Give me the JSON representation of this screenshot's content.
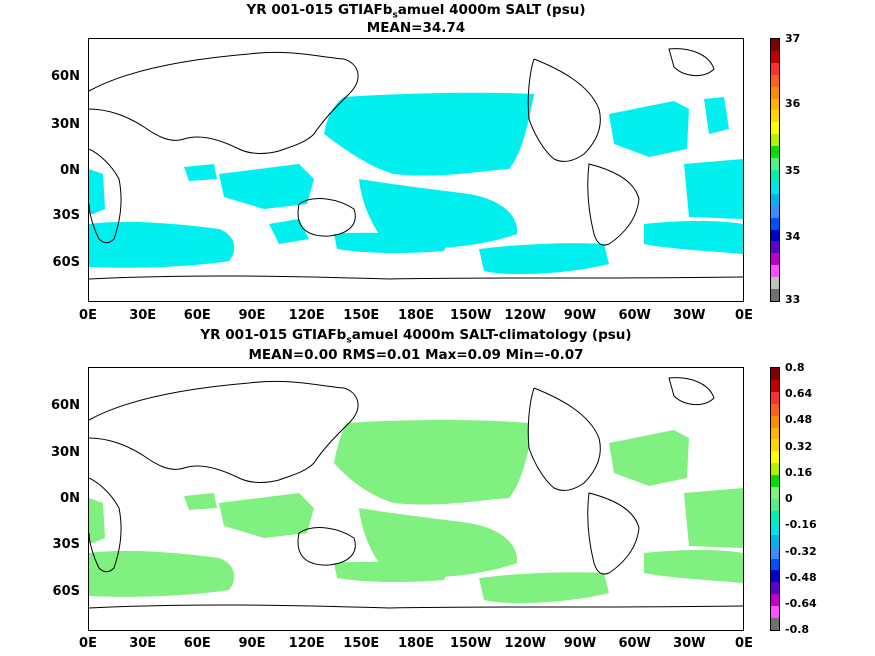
{
  "map1": {
    "title_pre": "YR 001-015 GTIAFb",
    "title_sub": "s",
    "title_post": "amuel 4000m SALT (psu)",
    "subtitle": "MEAN=34.74",
    "lat_labels": [
      "60N",
      "30N",
      "0N",
      "30S",
      "60S"
    ],
    "lon_labels": [
      "0E",
      "30E",
      "60E",
      "90E",
      "120E",
      "150E",
      "180E",
      "150W",
      "120W",
      "90W",
      "60W",
      "30W",
      "0E"
    ],
    "colorbar_labels": [
      "37",
      "36",
      "35",
      "34",
      "33"
    ],
    "colorbar_colors": [
      "#800000",
      "#c00000",
      "#ff3030",
      "#ff6020",
      "#ff8c00",
      "#ffb400",
      "#ffd700",
      "#ffff00",
      "#b4f000",
      "#00e000",
      "#50f08c",
      "#00f0b4",
      "#00e6e6",
      "#00b4f0",
      "#3c8cff",
      "#0050ff",
      "#0000c8",
      "#5a00c8",
      "#c000c8",
      "#ff50ff",
      "#c0c0c0",
      "#707070"
    ],
    "shade_color": "#00f0f0"
  },
  "map2": {
    "title_pre": "YR 001-015 GTIAFb",
    "title_sub": "s",
    "title_post": "amuel 4000m SALT-climatology (psu)",
    "subtitle": "MEAN=0.00   RMS=0.01   Max=0.09   Min=-0.07",
    "lat_labels": [
      "60N",
      "30N",
      "0N",
      "30S",
      "60S"
    ],
    "lon_labels": [
      "0E",
      "30E",
      "60E",
      "90E",
      "120E",
      "150E",
      "180E",
      "150W",
      "120W",
      "90W",
      "60W",
      "30W",
      "0E"
    ],
    "colorbar_labels": [
      "0.8",
      "0.64",
      "0.48",
      "0.32",
      "0.16",
      "0",
      "-0.16",
      "-0.32",
      "-0.48",
      "-0.64",
      "-0.8"
    ],
    "colorbar_colors": [
      "#800000",
      "#c00000",
      "#ff3030",
      "#ff6020",
      "#ff8c00",
      "#ffb400",
      "#ffd700",
      "#ffff00",
      "#b4f000",
      "#00e000",
      "#80f080",
      "#50f08c",
      "#00f0b4",
      "#00e6e6",
      "#00b4f0",
      "#3c8cff",
      "#0050ff",
      "#0000c8",
      "#5a00c8",
      "#c000c8",
      "#ff50ff",
      "#707070"
    ],
    "shade_color": "#80f080"
  }
}
